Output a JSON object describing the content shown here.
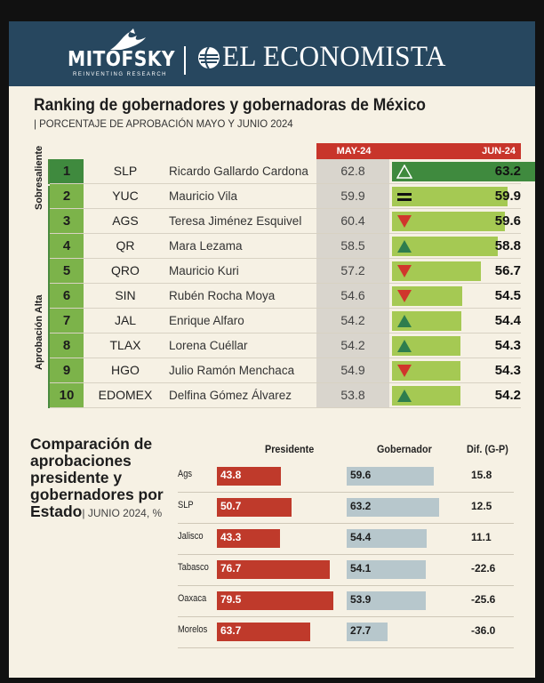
{
  "header": {
    "logo_left": "MITOFSKY",
    "logo_left_sub": "REINVENTING RESEARCH",
    "logo_right": "EL ECONOMISTA",
    "colors": {
      "header_bg": "#27475f"
    }
  },
  "chart_data": [
    {
      "type": "table",
      "title": "Ranking de gobernadores y gobernadoras de México",
      "subtitle": "PORCENTAJE DE APROBACIÓN MAYO Y JUNIO 2024",
      "columns": [
        "MAY-24",
        "JUN-24"
      ],
      "groups": [
        {
          "label": "Sobresaliente",
          "ranks": [
            1
          ]
        },
        {
          "label": "Aprobación Alta",
          "ranks": [
            2,
            3,
            4,
            5,
            6,
            7,
            8,
            9,
            10
          ]
        }
      ],
      "rows": [
        {
          "rank": "1",
          "state": "SLP",
          "name": "Ricardo Gallardo Cardona",
          "may": 62.8,
          "jun": 63.2,
          "trend": "up"
        },
        {
          "rank": "2",
          "state": "YUC",
          "name": "Mauricio Vila",
          "may": 59.9,
          "jun": 59.9,
          "trend": "equal"
        },
        {
          "rank": "3",
          "state": "AGS",
          "name": "Teresa Jiménez Esquivel",
          "may": 60.4,
          "jun": 59.6,
          "trend": "down"
        },
        {
          "rank": "4",
          "state": "QR",
          "name": "Mara Lezama",
          "may": 58.5,
          "jun": 58.8,
          "trend": "up"
        },
        {
          "rank": "5",
          "state": "QRO",
          "name": "Mauricio Kuri",
          "may": 57.2,
          "jun": 56.7,
          "trend": "down"
        },
        {
          "rank": "6",
          "state": "SIN",
          "name": "Rubén Rocha Moya",
          "may": 54.6,
          "jun": 54.5,
          "trend": "down"
        },
        {
          "rank": "7",
          "state": "JAL",
          "name": "Enrique Alfaro",
          "may": 54.2,
          "jun": 54.4,
          "trend": "up"
        },
        {
          "rank": "8",
          "state": "TLAX",
          "name": "Lorena Cuéllar",
          "may": 54.2,
          "jun": 54.3,
          "trend": "up"
        },
        {
          "rank": "9",
          "state": "HGO",
          "name": "Julio Ramón Menchaca",
          "may": 54.9,
          "jun": 54.3,
          "trend": "down"
        },
        {
          "rank": "10",
          "state": "EDOMEX",
          "name": "Delfina Gómez Álvarez",
          "may": 53.8,
          "jun": 54.2,
          "trend": "up"
        }
      ],
      "colors": {
        "header_red": "#c8352b",
        "top_green": "#3f8a3e",
        "bar_green": "#a5c953",
        "rank_green": "#7cb34a",
        "up": "#2e7d4e",
        "down": "#d0362c"
      }
    },
    {
      "type": "bar",
      "title": "Comparación de aprobaciones presidente y gobernadores por Estado",
      "title_unit": "JUNIO 2024, %",
      "columns": [
        "Presidente",
        "Gobernador",
        "Dif. (G-P)"
      ],
      "categories": [
        "Ags",
        "SLP",
        "Jalisco",
        "Tabasco",
        "Oaxaca",
        "Morelos"
      ],
      "series": [
        {
          "name": "Presidente",
          "values": [
            43.8,
            50.7,
            43.3,
            76.7,
            79.5,
            63.7
          ],
          "color": "#bf3a2b"
        },
        {
          "name": "Gobernador",
          "values": [
            59.6,
            63.2,
            54.4,
            54.1,
            53.9,
            27.7
          ],
          "color": "#b7c7cc"
        }
      ],
      "diff": [
        "15.8",
        "12.5",
        "11.1",
        "-22.6",
        "-25.6",
        "-36.0"
      ]
    }
  ]
}
